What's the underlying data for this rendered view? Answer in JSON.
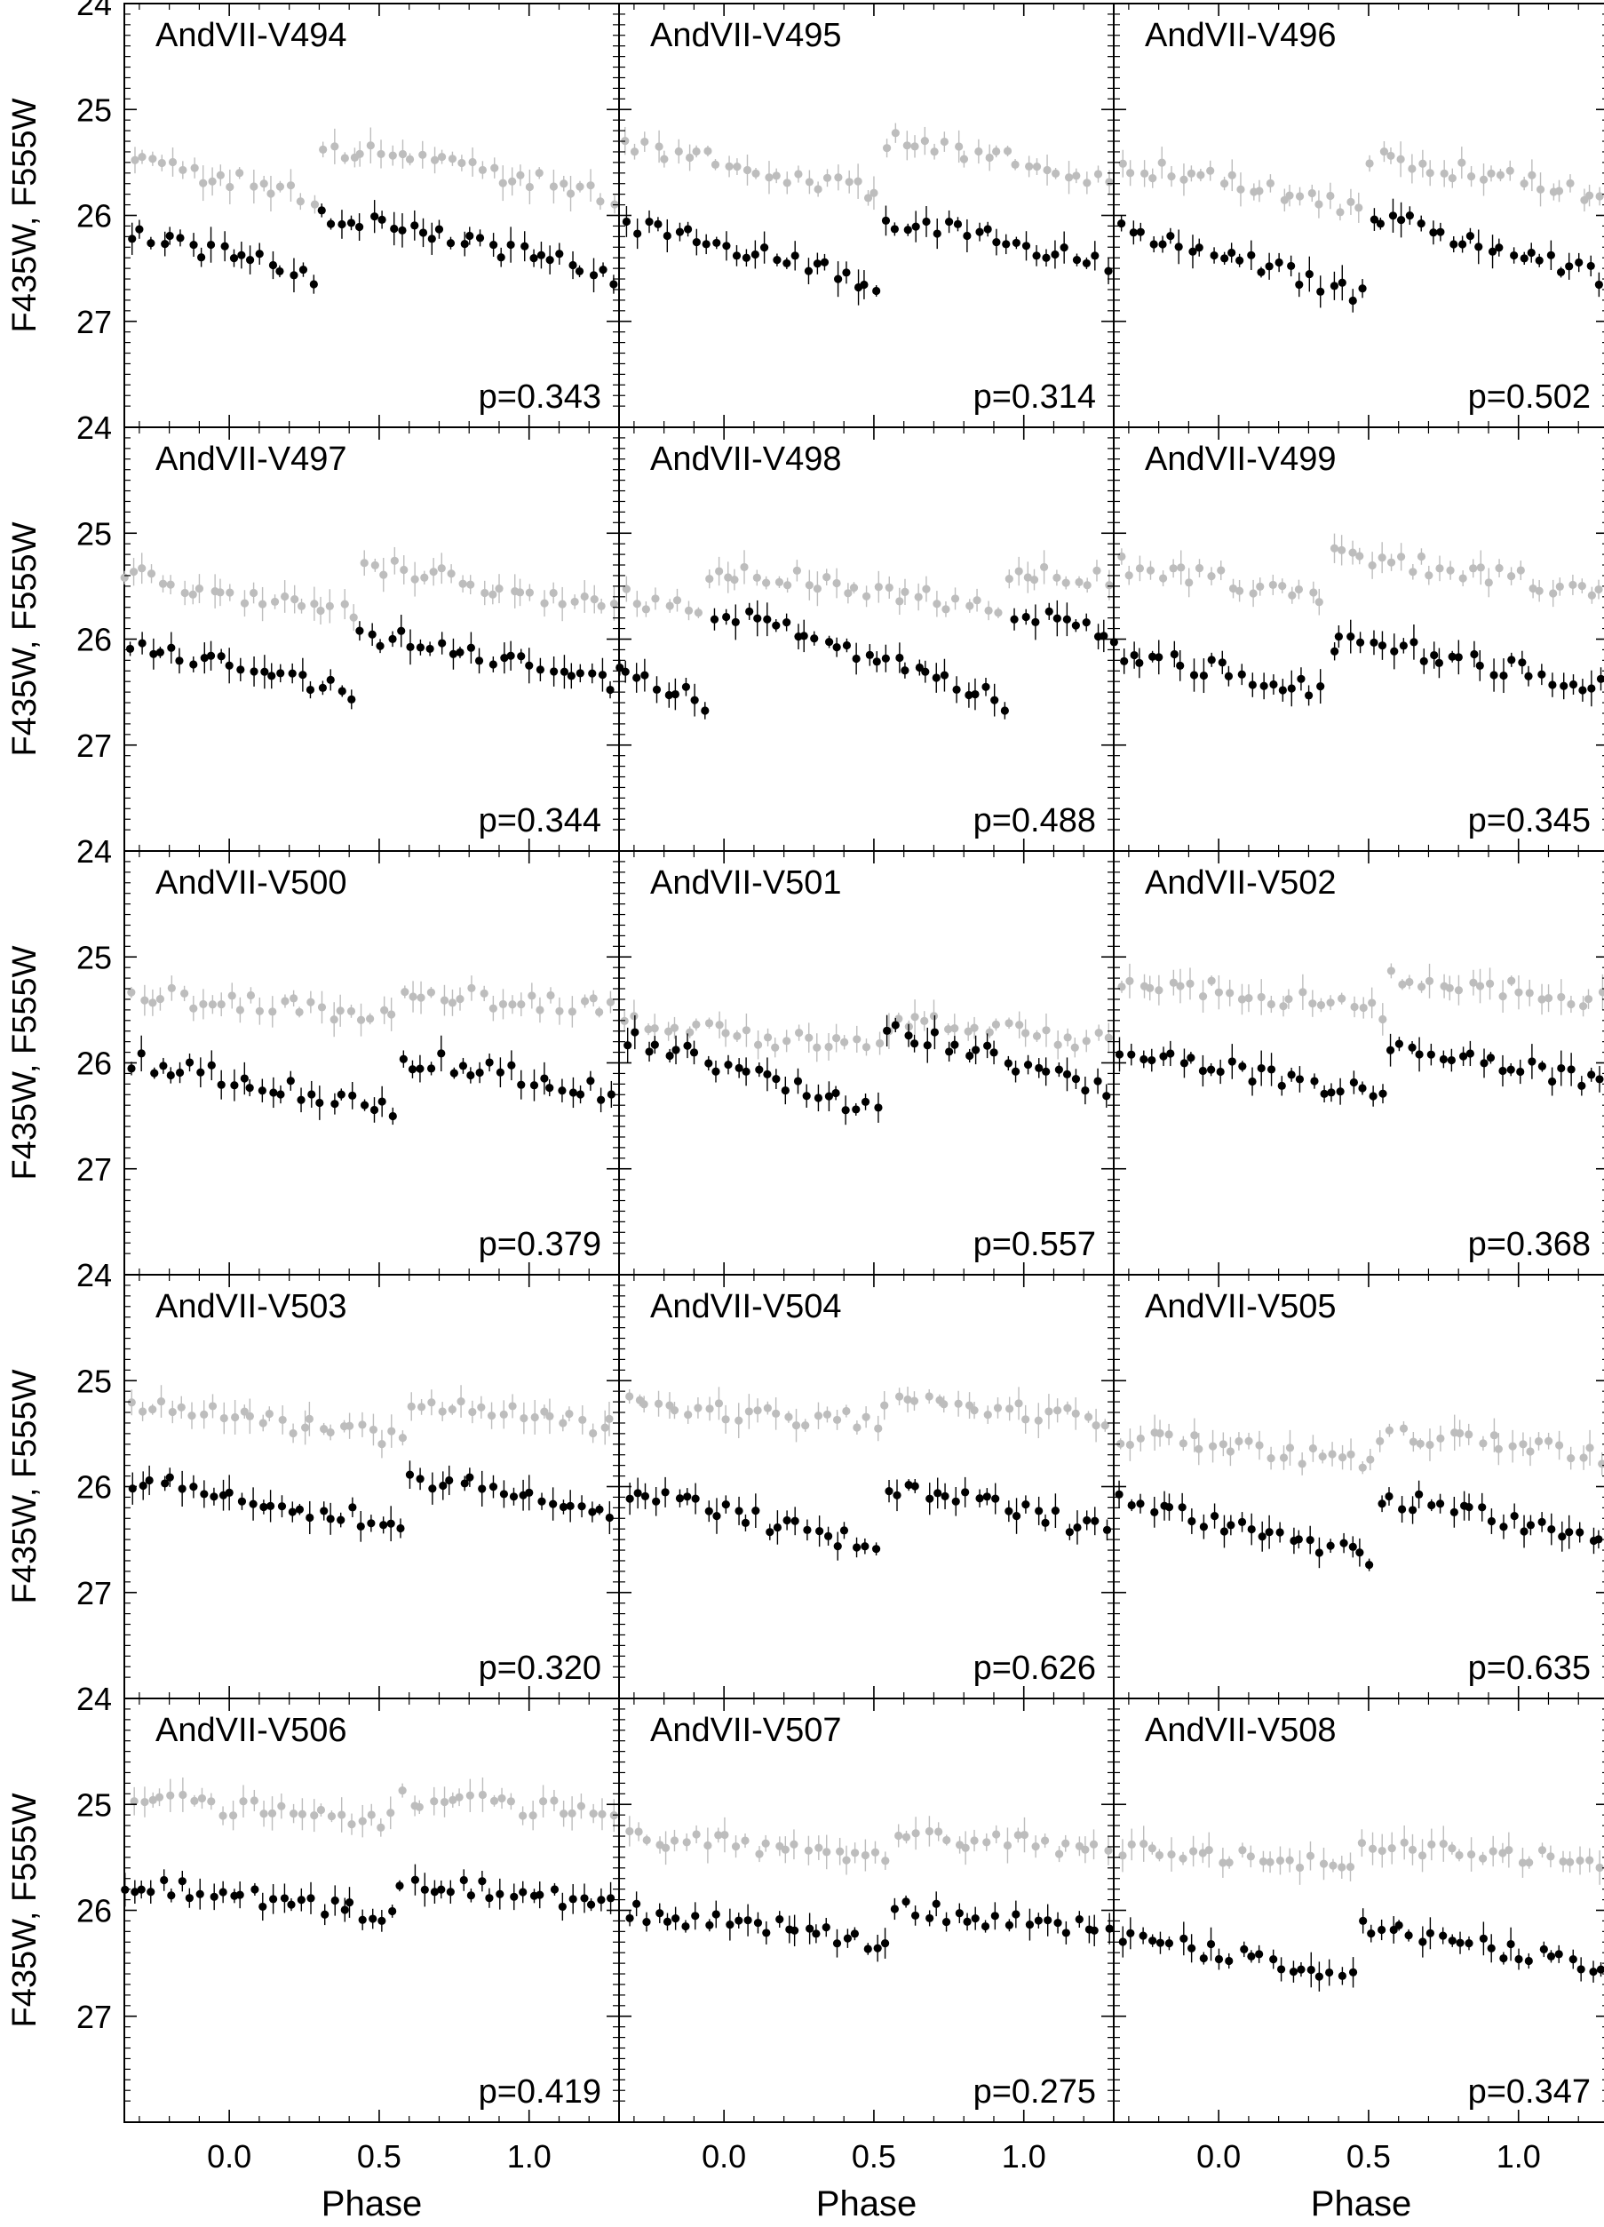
{
  "figure": {
    "xlabel": "Phase",
    "ylabel": "F435W, F555W",
    "xlim": [
      -0.35,
      1.3
    ],
    "ylim": [
      28.0,
      24.0
    ],
    "y_inverted": true,
    "xticks": [
      "0.0",
      "0.5",
      "1.0"
    ],
    "yticks": [
      "24",
      "25",
      "26",
      "27"
    ],
    "colors": {
      "F435W": "#000000",
      "F555W": "#bdbdbd",
      "frame": "#000000"
    }
  },
  "chart_data": [
    {
      "type": "scatter",
      "title": "AndVII-V494",
      "period_label": "p=0.343",
      "phase_shift": 0.3,
      "series": [
        {
          "name": "F435W",
          "color": "#000000",
          "base": 26.3,
          "amp": 0.55
        },
        {
          "name": "F555W",
          "color": "#bdbdbd",
          "base": 25.6,
          "amp": 0.45
        }
      ]
    },
    {
      "type": "scatter",
      "title": "AndVII-V495",
      "period_label": "p=0.314",
      "phase_shift": 0.52,
      "series": [
        {
          "name": "F435W",
          "color": "#000000",
          "base": 26.35,
          "amp": 0.6
        },
        {
          "name": "F555W",
          "color": "#bdbdbd",
          "base": 25.55,
          "amp": 0.5
        }
      ]
    },
    {
      "type": "scatter",
      "title": "AndVII-V496",
      "period_label": "p=0.502",
      "phase_shift": 0.48,
      "series": [
        {
          "name": "F435W",
          "color": "#000000",
          "base": 26.4,
          "amp": 0.7
        },
        {
          "name": "F555W",
          "color": "#bdbdbd",
          "base": 25.7,
          "amp": 0.45
        }
      ]
    },
    {
      "type": "scatter",
      "title": "AndVII-V497",
      "period_label": "p=0.344",
      "phase_shift": 0.42,
      "series": [
        {
          "name": "F435W",
          "color": "#000000",
          "base": 26.25,
          "amp": 0.55
        },
        {
          "name": "F555W",
          "color": "#bdbdbd",
          "base": 25.55,
          "amp": 0.45
        }
      ]
    },
    {
      "type": "scatter",
      "title": "AndVII-V498",
      "period_label": "p=0.488",
      "phase_shift": -0.05,
      "series": [
        {
          "name": "F435W",
          "color": "#000000",
          "base": 26.2,
          "amp": 0.8
        },
        {
          "name": "F555W",
          "color": "#bdbdbd",
          "base": 25.55,
          "amp": 0.35
        }
      ]
    },
    {
      "type": "scatter",
      "title": "AndVII-V499",
      "period_label": "p=0.345",
      "phase_shift": 0.35,
      "series": [
        {
          "name": "F435W",
          "color": "#000000",
          "base": 26.25,
          "amp": 0.45
        },
        {
          "name": "F555W",
          "color": "#bdbdbd",
          "base": 25.4,
          "amp": 0.35
        }
      ]
    },
    {
      "type": "scatter",
      "title": "AndVII-V500",
      "period_label": "p=0.379",
      "phase_shift": 0.55,
      "series": [
        {
          "name": "F435W",
          "color": "#000000",
          "base": 26.2,
          "amp": 0.45
        },
        {
          "name": "F555W",
          "color": "#bdbdbd",
          "base": 25.45,
          "amp": 0.2
        }
      ]
    },
    {
      "type": "scatter",
      "title": "AndVII-V501",
      "period_label": "p=0.557",
      "phase_shift": 0.52,
      "series": [
        {
          "name": "F435W",
          "color": "#000000",
          "base": 26.1,
          "amp": 0.75
        },
        {
          "name": "F555W",
          "color": "#bdbdbd",
          "base": 25.75,
          "amp": 0.25
        }
      ]
    },
    {
      "type": "scatter",
      "title": "AndVII-V502",
      "period_label": "p=0.368",
      "phase_shift": 0.55,
      "series": [
        {
          "name": "F435W",
          "color": "#000000",
          "base": 26.1,
          "amp": 0.45
        },
        {
          "name": "F555W",
          "color": "#bdbdbd",
          "base": 25.35,
          "amp": 0.3
        }
      ]
    },
    {
      "type": "scatter",
      "title": "AndVII-V503",
      "period_label": "p=0.320",
      "phase_shift": 0.6,
      "series": [
        {
          "name": "F435W",
          "color": "#000000",
          "base": 26.15,
          "amp": 0.45
        },
        {
          "name": "F555W",
          "color": "#bdbdbd",
          "base": 25.4,
          "amp": 0.3
        }
      ]
    },
    {
      "type": "scatter",
      "title": "AndVII-V504",
      "period_label": "p=0.626",
      "phase_shift": 0.52,
      "series": [
        {
          "name": "F435W",
          "color": "#000000",
          "base": 26.3,
          "amp": 0.55
        },
        {
          "name": "F555W",
          "color": "#bdbdbd",
          "base": 25.3,
          "amp": 0.2
        }
      ]
    },
    {
      "type": "scatter",
      "title": "AndVII-V505",
      "period_label": "p=0.635",
      "phase_shift": 0.52,
      "series": [
        {
          "name": "F435W",
          "color": "#000000",
          "base": 26.4,
          "amp": 0.55
        },
        {
          "name": "F555W",
          "color": "#bdbdbd",
          "base": 25.65,
          "amp": 0.25
        }
      ]
    },
    {
      "type": "scatter",
      "title": "AndVII-V506",
      "period_label": "p=0.419",
      "phase_shift": 0.55,
      "series": [
        {
          "name": "F435W",
          "color": "#000000",
          "base": 25.9,
          "amp": 0.3
        },
        {
          "name": "F555W",
          "color": "#bdbdbd",
          "base": 25.05,
          "amp": 0.2
        }
      ]
    },
    {
      "type": "scatter",
      "title": "AndVII-V507",
      "period_label": "p=0.275",
      "phase_shift": 0.55,
      "series": [
        {
          "name": "F435W",
          "color": "#000000",
          "base": 26.15,
          "amp": 0.3
        },
        {
          "name": "F555W",
          "color": "#bdbdbd",
          "base": 25.4,
          "amp": 0.2
        }
      ]
    },
    {
      "type": "scatter",
      "title": "AndVII-V508",
      "period_label": "p=0.347",
      "phase_shift": 0.45,
      "series": [
        {
          "name": "F435W",
          "color": "#000000",
          "base": 26.4,
          "amp": 0.45
        },
        {
          "name": "F555W",
          "color": "#bdbdbd",
          "base": 25.5,
          "amp": 0.2
        }
      ]
    }
  ]
}
